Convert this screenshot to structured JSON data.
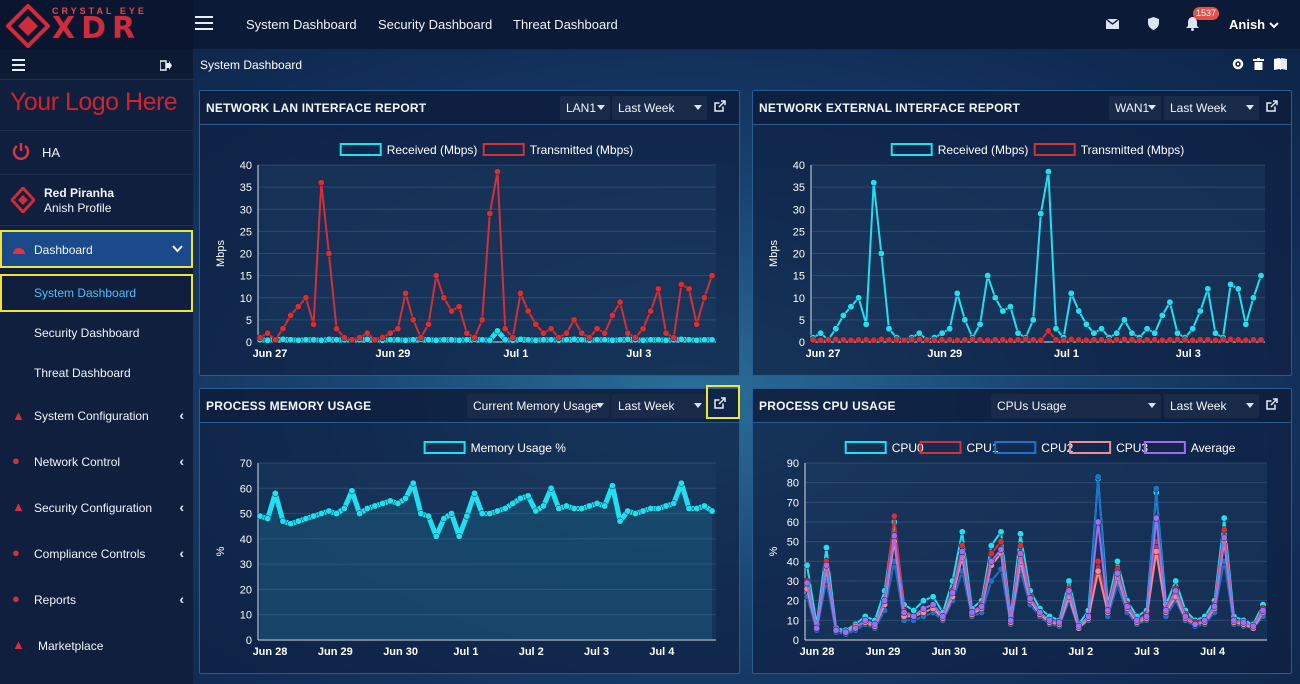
{
  "brand": {
    "top": "CRYSTAL EYE",
    "main": "XDR"
  },
  "topnav": [
    "System Dashboard",
    "Security Dashboard",
    "Threat Dashboard"
  ],
  "header": {
    "notification_count": "1537",
    "user": "Anish"
  },
  "sidebar": {
    "logo_text": "Your Logo Here",
    "ha_label": "HA",
    "profile_name": "Red Piranha",
    "profile_sub": "Anish Profile",
    "dashboard": "Dashboard",
    "sub_items": [
      "System Dashboard",
      "Security Dashboard",
      "Threat Dashboard"
    ],
    "sections": [
      "System Configuration",
      "Network Control",
      "Security Configuration",
      "Compliance Controls",
      "Reports"
    ],
    "marketplace": "Marketplace"
  },
  "breadcrumb": "System Dashboard",
  "colors": {
    "received": "#1ee0f0",
    "transmitted": "#d62f35",
    "cpu0": "#1ee0f0",
    "cpu1": "#d62f35",
    "cpu2": "#1e73c8",
    "cpu3": "#f18c92",
    "average": "#9f6cf2",
    "accent": "#f1e339"
  },
  "panels": {
    "lan": {
      "title": "NETWORK LAN INTERFACE REPORT",
      "iface": "LAN1",
      "range": "Last Week"
    },
    "wan": {
      "title": "NETWORK EXTERNAL INTERFACE REPORT",
      "iface": "WAN1",
      "range": "Last Week"
    },
    "mem": {
      "title": "PROCESS MEMORY USAGE",
      "metric": "Current Memory Usage",
      "range": "Last Week"
    },
    "cpu": {
      "title": "PROCESS CPU USAGE",
      "metric": "CPUs Usage",
      "range": "Last Week"
    }
  },
  "chart_data": [
    {
      "type": "line",
      "title": "NETWORK LAN INTERFACE REPORT",
      "ylabel": "Mbps",
      "ylim": [
        0,
        40
      ],
      "yticks": [
        0,
        5,
        10,
        15,
        20,
        25,
        30,
        35,
        40
      ],
      "xticks": [
        "Jun 27",
        "Jun 29",
        "Jul 1",
        "Jul 3"
      ],
      "legend": [
        "Received (Mbps)",
        "Transmitted (Mbps)"
      ],
      "series": [
        {
          "name": "Received (Mbps)",
          "values": [
            0.5,
            0.4,
            0.5,
            0.6,
            0.5,
            0.4,
            0.5,
            0.5,
            0.4,
            0.6,
            0.5,
            0.5,
            0.4,
            0.5,
            0.6,
            0.5,
            0.4,
            0.5,
            0.5,
            0.4,
            0.5,
            0.6,
            0.5,
            0.4,
            0.5,
            0.5,
            0.4,
            0.5,
            0.6,
            0.5,
            0.4,
            2.5,
            0.5,
            0.4,
            0.6,
            0.5,
            0.4,
            0.5,
            0.5,
            0.4,
            0.5,
            0.6,
            0.5,
            0.4,
            0.5,
            0.5,
            0.4,
            0.5,
            0.6,
            0.5,
            0.4,
            0.5,
            0.5,
            0.4,
            0.5,
            0.6,
            0.5,
            0.4,
            0.5,
            0.5
          ]
        },
        {
          "name": "Transmitted (Mbps)",
          "values": [
            1,
            2,
            0.5,
            3,
            6,
            8,
            10,
            4,
            36,
            20,
            3,
            1,
            0.5,
            1,
            2,
            0.5,
            1,
            2,
            3,
            11,
            5,
            1,
            4,
            15,
            10,
            7,
            8,
            2,
            1,
            5,
            29,
            38.5,
            3,
            1,
            11,
            7,
            4,
            2,
            3,
            1,
            2,
            5,
            2,
            1,
            3,
            2,
            6,
            9,
            2,
            1,
            3,
            7,
            12,
            2,
            1,
            13,
            12,
            4,
            10,
            15
          ]
        }
      ]
    },
    {
      "type": "line",
      "title": "NETWORK EXTERNAL INTERFACE REPORT",
      "ylabel": "Mbps",
      "ylim": [
        0,
        40
      ],
      "yticks": [
        0,
        5,
        10,
        15,
        20,
        25,
        30,
        35,
        40
      ],
      "xticks": [
        "Jun 27",
        "Jun 29",
        "Jul 1",
        "Jul 3"
      ],
      "legend": [
        "Received (Mbps)",
        "Transmitted (Mbps)"
      ],
      "series": [
        {
          "name": "Received (Mbps)",
          "values": [
            1,
            2,
            0.5,
            3,
            6,
            8,
            10,
            4,
            36,
            20,
            3,
            1,
            0.5,
            1,
            2,
            0.5,
            1,
            2,
            3,
            11,
            5,
            1,
            4,
            15,
            10,
            7,
            8,
            2,
            1,
            5,
            29,
            38.5,
            3,
            1,
            11,
            7,
            4,
            2,
            3,
            1,
            2,
            5,
            2,
            1,
            3,
            2,
            6,
            9,
            2,
            1,
            3,
            7,
            12,
            2,
            1,
            13,
            12,
            4,
            10,
            15
          ]
        },
        {
          "name": "Transmitted (Mbps)",
          "values": [
            0.5,
            0.4,
            0.5,
            0.6,
            0.5,
            0.4,
            0.5,
            0.5,
            0.4,
            0.6,
            0.5,
            0.5,
            0.4,
            0.5,
            0.6,
            0.5,
            0.4,
            0.5,
            0.5,
            0.4,
            0.5,
            0.6,
            0.5,
            0.4,
            0.5,
            0.5,
            0.4,
            0.5,
            0.6,
            0.5,
            0.4,
            2.5,
            0.5,
            0.4,
            0.6,
            0.5,
            0.4,
            0.5,
            0.5,
            0.4,
            0.5,
            0.6,
            0.5,
            0.4,
            0.5,
            0.5,
            0.4,
            0.5,
            0.6,
            0.5,
            0.4,
            0.5,
            0.5,
            0.4,
            0.5,
            0.6,
            0.5,
            0.4,
            0.5,
            0.5
          ]
        }
      ]
    },
    {
      "type": "area",
      "title": "PROCESS MEMORY USAGE",
      "ylabel": "%",
      "ylim": [
        0,
        70
      ],
      "yticks": [
        0,
        10,
        20,
        30,
        40,
        50,
        60,
        70
      ],
      "xticks": [
        "Jun 28",
        "Jun 29",
        "Jun 30",
        "Jul 1",
        "Jul 2",
        "Jul 3",
        "Jul 4"
      ],
      "legend": [
        "Memory Usage %"
      ],
      "series": [
        {
          "name": "Memory Usage %",
          "values": [
            49,
            48,
            58,
            47,
            46,
            47,
            48,
            49,
            50,
            51,
            50,
            52,
            59,
            50,
            52,
            53,
            54,
            55,
            54,
            56,
            62,
            50,
            49,
            41,
            48,
            50,
            41,
            49,
            58,
            50,
            50,
            51,
            52,
            54,
            56,
            57,
            51,
            53,
            60,
            52,
            53,
            52,
            52,
            53,
            54,
            53,
            61,
            47,
            51,
            50,
            51,
            52,
            52,
            53,
            54,
            62,
            52,
            52,
            53,
            51
          ]
        }
      ]
    },
    {
      "type": "line",
      "title": "PROCESS CPU USAGE",
      "ylabel": "%",
      "ylim": [
        0,
        90
      ],
      "yticks": [
        0,
        10,
        20,
        30,
        40,
        50,
        60,
        70,
        80,
        90
      ],
      "xticks": [
        "Jun 28",
        "Jun 29",
        "Jun 30",
        "Jul 1",
        "Jul 2",
        "Jul 3",
        "Jul 4"
      ],
      "legend": [
        "CPU0",
        "CPU1",
        "CPU2",
        "CPU3",
        "Average"
      ],
      "series": [
        {
          "name": "CPU0",
          "values": [
            38,
            8,
            47,
            6,
            5,
            8,
            12,
            10,
            25,
            60,
            18,
            15,
            20,
            22,
            14,
            30,
            55,
            16,
            20,
            48,
            55,
            12,
            54,
            25,
            16,
            12,
            10,
            30,
            8,
            15,
            82,
            18,
            40,
            20,
            12,
            15,
            75,
            18,
            30,
            15,
            10,
            12,
            20,
            62,
            12,
            10,
            8,
            18
          ]
        },
        {
          "name": "CPU1",
          "values": [
            30,
            6,
            40,
            5,
            4,
            6,
            10,
            8,
            20,
            63,
            15,
            12,
            16,
            18,
            12,
            25,
            48,
            14,
            18,
            44,
            50,
            10,
            48,
            22,
            14,
            10,
            9,
            26,
            7,
            12,
            40,
            16,
            36,
            18,
            10,
            13,
            50,
            16,
            26,
            13,
            9,
            10,
            18,
            56,
            10,
            9,
            7,
            16
          ]
        },
        {
          "name": "CPU2",
          "values": [
            22,
            5,
            30,
            4,
            3,
            5,
            8,
            6,
            15,
            40,
            10,
            10,
            12,
            14,
            10,
            20,
            35,
            12,
            14,
            30,
            36,
            8,
            35,
            18,
            12,
            8,
            7,
            20,
            6,
            10,
            83,
            12,
            28,
            14,
            8,
            10,
            77,
            12,
            20,
            10,
            7,
            8,
            14,
            40,
            8,
            7,
            6,
            12
          ]
        },
        {
          "name": "CPU3",
          "values": [
            26,
            6,
            36,
            5,
            4,
            7,
            9,
            7,
            18,
            50,
            12,
            12,
            14,
            16,
            11,
            22,
            42,
            13,
            16,
            38,
            44,
            9,
            40,
            20,
            13,
            9,
            8,
            22,
            6,
            11,
            35,
            14,
            32,
            16,
            9,
            11,
            45,
            14,
            22,
            11,
            8,
            9,
            16,
            50,
            9,
            8,
            6,
            14
          ]
        },
        {
          "name": "Average",
          "values": [
            29,
            6,
            38,
            5,
            4,
            6,
            10,
            8,
            20,
            53,
            14,
            12,
            16,
            18,
            12,
            24,
            45,
            14,
            17,
            40,
            46,
            10,
            44,
            21,
            14,
            10,
            9,
            25,
            7,
            12,
            60,
            15,
            34,
            17,
            10,
            12,
            62,
            15,
            25,
            12,
            8,
            10,
            17,
            52,
            10,
            9,
            7,
            15
          ]
        }
      ]
    }
  ]
}
